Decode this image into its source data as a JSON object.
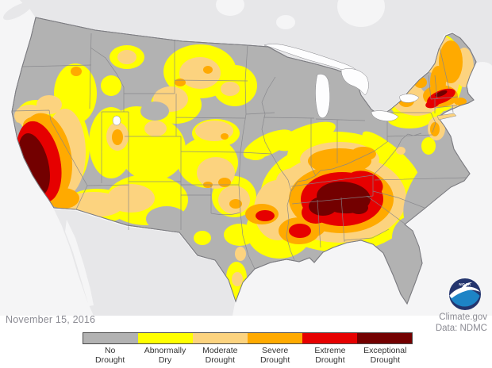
{
  "date_label": "November 15, 2016",
  "attribution": {
    "line1": "Climate.gov",
    "line2": "Data: NDMC"
  },
  "noaa_logo": {
    "text": "NOAA"
  },
  "legend": {
    "items": [
      {
        "label": "No Drought",
        "line1": "No",
        "line2": "Drought",
        "color": "#b2b2b2"
      },
      {
        "label": "Abnormally Dry",
        "line1": "Abnormally",
        "line2": "Dry",
        "color": "#ffff00"
      },
      {
        "label": "Moderate Drought",
        "line1": "Moderate",
        "line2": "Drought",
        "color": "#fcd37f"
      },
      {
        "label": "Severe Drought",
        "line1": "Severe",
        "line2": "Drought",
        "color": "#ffaa00"
      },
      {
        "label": "Extreme Drought",
        "line1": "Extreme",
        "line2": "Drought",
        "color": "#e60000"
      },
      {
        "label": "Exceptional Drought",
        "line1": "Exceptional",
        "line2": "Drought",
        "color": "#730000"
      }
    ]
  },
  "colors": {
    "page_bg": "#ffffff",
    "water": "#f5f5f6",
    "neighbor_land": "#e7e7e9",
    "us_no_drought": "#b2b2b2",
    "d0": "#ffff00",
    "d1": "#fcd37f",
    "d2": "#ffaa00",
    "d3": "#e60000",
    "d4": "#730000",
    "state_border": "#85858a",
    "us_outline": "#7d7d82",
    "lake_fill": "#fdfdfe",
    "legend_border": "#4a4a4a",
    "label_text": "#333333",
    "muted_text": "#8b8b93",
    "noaa_navy": "#24356e",
    "noaa_blue": "#1d84c6"
  },
  "map_data": {
    "type": "choropleth",
    "subject": "U.S. drought conditions",
    "date": "November 15, 2016",
    "categories": [
      "No Drought",
      "Abnormally Dry",
      "Moderate Drought",
      "Severe Drought",
      "Extreme Drought",
      "Exceptional Drought"
    ],
    "regions": [
      {
        "area": "Central and southern California",
        "severity": "Exceptional Drought core with Extreme/Severe ring"
      },
      {
        "area": "Northern Alabama, northern Georgia, southeastern Tennessee",
        "severity": "Exceptional Drought core"
      },
      {
        "area": "Southeast ring (Mississippi, Alabama, Georgia, Tennessee, western Carolinas)",
        "severity": "Extreme to Severe Drought"
      },
      {
        "area": "Southern New England (Connecticut / Massachusetts band)",
        "severity": "Extreme Drought with small Exceptional streak"
      },
      {
        "area": "Kentucky, interior Northeast (New York, New Hampshire, Maine)",
        "severity": "Severe to Moderate Drought"
      },
      {
        "area": "Northern Plains, Four Corners, Kansas/Oklahoma, Arkansas, Louisiana",
        "severity": "Abnormally Dry to Moderate Drought patches"
      },
      {
        "area": "Pacific Northwest, upper Midwest, Florida, most of Texas, coastal Carolinas",
        "severity": "No Drought"
      }
    ]
  }
}
